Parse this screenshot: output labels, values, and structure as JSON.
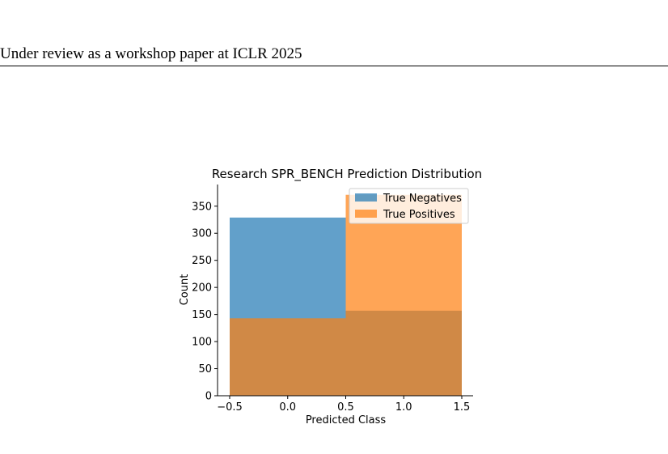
{
  "header": {
    "running_title": "Under review as a workshop paper at ICLR 2025"
  },
  "chart_data": {
    "type": "bar",
    "title": "Research SPR_BENCH Prediction Distribution",
    "xlabel": "Predicted Class",
    "ylabel": "Count",
    "xlim": [
      -0.5,
      1.5
    ],
    "ylim": [
      0,
      390
    ],
    "xticks": [
      -0.5,
      0.0,
      0.5,
      1.0,
      1.5
    ],
    "xtick_labels": [
      "−0.5",
      "0.0",
      "0.5",
      "1.0",
      "1.5"
    ],
    "yticks": [
      0,
      50,
      100,
      150,
      200,
      250,
      300,
      350
    ],
    "bins": [
      [
        -0.5,
        0.5
      ],
      [
        0.5,
        1.5
      ]
    ],
    "overlay": "semi-transparent overlapping histograms",
    "legend_position": "top-right",
    "series": [
      {
        "name": "True Negatives",
        "color": "#1f77b4",
        "values": [
          329,
          157
        ]
      },
      {
        "name": "True Positives",
        "color": "#ff7f0e",
        "values": [
          143,
          371
        ]
      }
    ]
  }
}
